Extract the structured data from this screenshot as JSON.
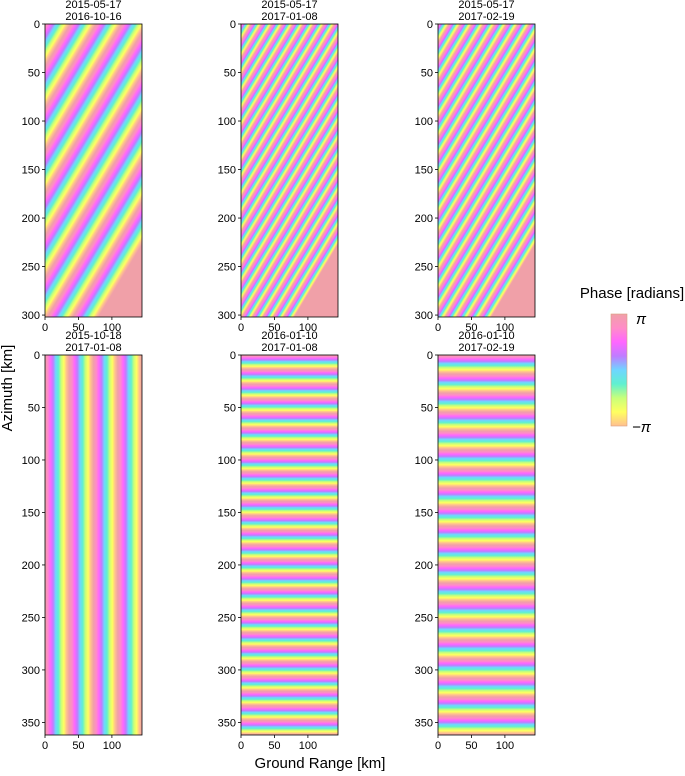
{
  "figure": {
    "y_axis_label": "Azimuth [km]",
    "x_axis_label": "Ground Range [km]",
    "colorbar": {
      "title": "Phase [radians]",
      "max_label": "π",
      "min_label": "−π",
      "colors": [
        "#f0a0a8",
        "#ff8cc8",
        "#ff66ff",
        "#c07cff",
        "#6fd6ff",
        "#60f0d0",
        "#c8ff7a",
        "#ffff60",
        "#ffc090"
      ]
    }
  },
  "chart_data": [
    {
      "type": "heatmap",
      "date_primary": "2015-05-17",
      "date_secondary": "2016-10-16",
      "x_ticks": [
        "0",
        "50",
        "100"
      ],
      "y_ticks": [
        "0",
        "50",
        "100",
        "150",
        "200",
        "250",
        "300"
      ],
      "x_range": [
        0,
        145
      ],
      "y_range": [
        0,
        302
      ],
      "fringe_pattern": {
        "orientation": "diagonal, descending left-to-right",
        "fringe_count": 9
      }
    },
    {
      "type": "heatmap",
      "date_primary": "2015-05-17",
      "date_secondary": "2017-01-08",
      "x_ticks": [
        "0",
        "50",
        "100"
      ],
      "y_ticks": [
        "0",
        "50",
        "100",
        "150",
        "200",
        "250",
        "300"
      ],
      "x_range": [
        0,
        145
      ],
      "y_range": [
        0,
        302
      ],
      "fringe_pattern": {
        "orientation": "diagonal, descending left-to-right",
        "fringe_count": 22
      }
    },
    {
      "type": "heatmap",
      "date_primary": "2015-05-17",
      "date_secondary": "2017-02-19",
      "x_ticks": [
        "0",
        "50",
        "100"
      ],
      "y_ticks": [
        "0",
        "50",
        "100",
        "150",
        "200",
        "250",
        "300"
      ],
      "x_range": [
        0,
        145
      ],
      "y_range": [
        0,
        302
      ],
      "fringe_pattern": {
        "orientation": "diagonal, descending left-to-right",
        "fringe_count": 20
      }
    },
    {
      "type": "heatmap",
      "date_primary": "2015-10-18",
      "date_secondary": "2017-01-08",
      "x_ticks": [
        "0",
        "50",
        "100"
      ],
      "y_ticks": [
        "0",
        "50",
        "100",
        "150",
        "200",
        "250",
        "300",
        "350"
      ],
      "x_range": [
        0,
        145
      ],
      "y_range": [
        0,
        362
      ],
      "fringe_pattern": {
        "orientation": "near-vertical",
        "fringe_count": 4
      }
    },
    {
      "type": "heatmap",
      "date_primary": "2016-01-10",
      "date_secondary": "2017-01-08",
      "x_ticks": [
        "0",
        "50",
        "100"
      ],
      "y_ticks": [
        "0",
        "50",
        "100",
        "150",
        "200",
        "250",
        "300",
        "350"
      ],
      "x_range": [
        0,
        145
      ],
      "y_range": [
        0,
        362
      ],
      "fringe_pattern": {
        "orientation": "near-horizontal",
        "fringe_count": 26
      }
    },
    {
      "type": "heatmap",
      "date_primary": "2016-01-10",
      "date_secondary": "2017-02-19",
      "x_ticks": [
        "0",
        "50",
        "100"
      ],
      "y_ticks": [
        "0",
        "50",
        "100",
        "150",
        "200",
        "250",
        "300",
        "350"
      ],
      "x_range": [
        0,
        145
      ],
      "y_range": [
        0,
        362
      ],
      "fringe_pattern": {
        "orientation": "near-horizontal",
        "fringe_count": 20
      }
    }
  ]
}
